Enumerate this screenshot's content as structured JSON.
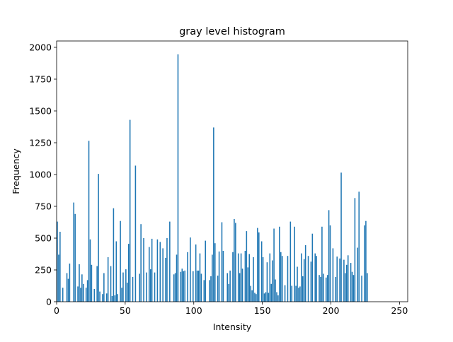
{
  "chart_data": {
    "type": "bar",
    "title": "gray level histogram",
    "xlabel": "Intensity",
    "ylabel": "Frequency",
    "xlim": [
      0,
      256
    ],
    "ylim": [
      0,
      2050
    ],
    "xticks": [
      0,
      50,
      100,
      150,
      200,
      250
    ],
    "yticks": [
      0,
      250,
      500,
      750,
      1000,
      1250,
      1500,
      1750,
      2000
    ],
    "grid": false,
    "bar_color": "#1f77b4",
    "bars": [
      [
        0,
        630
      ],
      [
        1,
        370
      ],
      [
        2,
        550
      ],
      [
        4,
        110
      ],
      [
        7,
        225
      ],
      [
        8,
        180
      ],
      [
        9,
        300
      ],
      [
        12,
        780
      ],
      [
        13,
        690
      ],
      [
        15,
        120
      ],
      [
        16,
        295
      ],
      [
        17,
        110
      ],
      [
        18,
        215
      ],
      [
        19,
        140
      ],
      [
        21,
        110
      ],
      [
        22,
        170
      ],
      [
        23,
        1265
      ],
      [
        24,
        490
      ],
      [
        25,
        290
      ],
      [
        27,
        100
      ],
      [
        29,
        280
      ],
      [
        30,
        1005
      ],
      [
        31,
        80
      ],
      [
        33,
        60
      ],
      [
        34,
        225
      ],
      [
        36,
        65
      ],
      [
        37,
        350
      ],
      [
        39,
        280
      ],
      [
        40,
        45
      ],
      [
        41,
        735
      ],
      [
        42,
        50
      ],
      [
        43,
        475
      ],
      [
        44,
        60
      ],
      [
        46,
        635
      ],
      [
        47,
        110
      ],
      [
        48,
        230
      ],
      [
        50,
        255
      ],
      [
        51,
        150
      ],
      [
        52,
        455
      ],
      [
        53,
        1430
      ],
      [
        55,
        195
      ],
      [
        57,
        1070
      ],
      [
        60,
        220
      ],
      [
        61,
        610
      ],
      [
        63,
        500
      ],
      [
        65,
        230
      ],
      [
        67,
        430
      ],
      [
        68,
        255
      ],
      [
        69,
        495
      ],
      [
        71,
        230
      ],
      [
        73,
        490
      ],
      [
        75,
        470
      ],
      [
        77,
        420
      ],
      [
        79,
        345
      ],
      [
        80,
        500
      ],
      [
        82,
        630
      ],
      [
        85,
        215
      ],
      [
        86,
        225
      ],
      [
        87,
        370
      ],
      [
        88,
        1945
      ],
      [
        90,
        235
      ],
      [
        91,
        260
      ],
      [
        92,
        240
      ],
      [
        93,
        245
      ],
      [
        95,
        390
      ],
      [
        97,
        505
      ],
      [
        99,
        240
      ],
      [
        101,
        450
      ],
      [
        102,
        245
      ],
      [
        103,
        245
      ],
      [
        104,
        380
      ],
      [
        105,
        220
      ],
      [
        107,
        170
      ],
      [
        108,
        480
      ],
      [
        111,
        170
      ],
      [
        112,
        200
      ],
      [
        113,
        370
      ],
      [
        114,
        1370
      ],
      [
        115,
        460
      ],
      [
        117,
        205
      ],
      [
        118,
        395
      ],
      [
        120,
        625
      ],
      [
        121,
        400
      ],
      [
        124,
        225
      ],
      [
        125,
        140
      ],
      [
        126,
        245
      ],
      [
        128,
        390
      ],
      [
        129,
        650
      ],
      [
        130,
        620
      ],
      [
        132,
        380
      ],
      [
        133,
        225
      ],
      [
        134,
        380
      ],
      [
        135,
        260
      ],
      [
        137,
        400
      ],
      [
        138,
        555
      ],
      [
        139,
        270
      ],
      [
        140,
        375
      ],
      [
        141,
        125
      ],
      [
        142,
        90
      ],
      [
        143,
        350
      ],
      [
        144,
        70
      ],
      [
        145,
        60
      ],
      [
        146,
        580
      ],
      [
        147,
        545
      ],
      [
        149,
        475
      ],
      [
        150,
        350
      ],
      [
        151,
        65
      ],
      [
        152,
        75
      ],
      [
        153,
        310
      ],
      [
        154,
        70
      ],
      [
        155,
        380
      ],
      [
        156,
        140
      ],
      [
        157,
        325
      ],
      [
        158,
        575
      ],
      [
        159,
        175
      ],
      [
        160,
        75
      ],
      [
        161,
        50
      ],
      [
        162,
        590
      ],
      [
        163,
        390
      ],
      [
        164,
        360
      ],
      [
        166,
        130
      ],
      [
        168,
        360
      ],
      [
        170,
        630
      ],
      [
        171,
        125
      ],
      [
        173,
        590
      ],
      [
        174,
        125
      ],
      [
        175,
        275
      ],
      [
        176,
        110
      ],
      [
        177,
        120
      ],
      [
        178,
        380
      ],
      [
        179,
        200
      ],
      [
        180,
        335
      ],
      [
        181,
        445
      ],
      [
        183,
        360
      ],
      [
        185,
        315
      ],
      [
        186,
        535
      ],
      [
        188,
        380
      ],
      [
        189,
        360
      ],
      [
        191,
        210
      ],
      [
        192,
        195
      ],
      [
        193,
        590
      ],
      [
        194,
        220
      ],
      [
        196,
        190
      ],
      [
        197,
        210
      ],
      [
        198,
        720
      ],
      [
        199,
        600
      ],
      [
        201,
        420
      ],
      [
        203,
        195
      ],
      [
        204,
        355
      ],
      [
        206,
        340
      ],
      [
        207,
        1015
      ],
      [
        209,
        330
      ],
      [
        210,
        225
      ],
      [
        211,
        290
      ],
      [
        212,
        365
      ],
      [
        214,
        305
      ],
      [
        215,
        235
      ],
      [
        216,
        210
      ],
      [
        217,
        815
      ],
      [
        219,
        425
      ],
      [
        220,
        865
      ],
      [
        222,
        205
      ],
      [
        224,
        600
      ],
      [
        225,
        635
      ],
      [
        226,
        225
      ]
    ]
  }
}
